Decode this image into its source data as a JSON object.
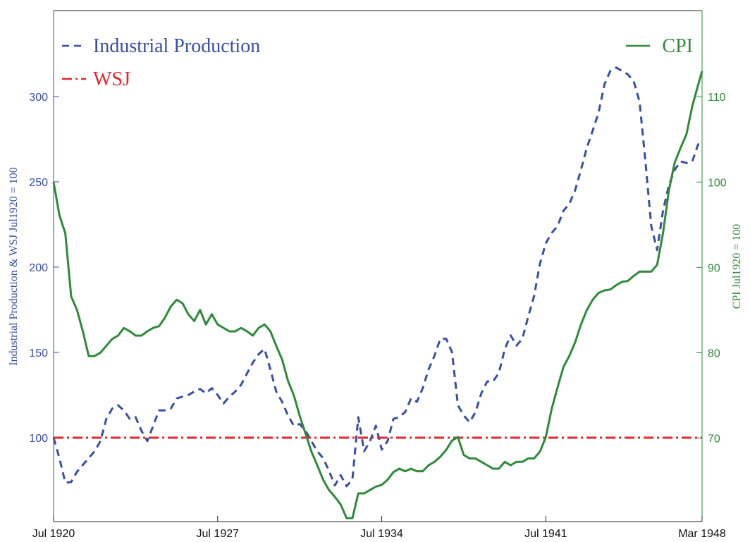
{
  "chart_data": {
    "type": "line",
    "ylabel": "Industrial Production & WSJ Jul1920 = 100",
    "y2label": "CPI Jul1920 = 100",
    "xlim": [
      "Jul 1920",
      "Mar 1948"
    ],
    "xticks": [
      "Jul 1920",
      "Jul 1927",
      "Jul 1934",
      "Jul 1941",
      "Mar 1948"
    ],
    "ylim": [
      50.8,
      350.4
    ],
    "yticks": [
      100,
      150,
      200,
      250,
      300
    ],
    "y2lim": [
      60.2,
      120.1
    ],
    "y2ticks": [
      70,
      80,
      90,
      100,
      110
    ],
    "x": [
      "Jul 1920",
      "Oct 1920",
      "Jan 1921",
      "Apr 1921",
      "Jul 1921",
      "Oct 1921",
      "Jan 1922",
      "Apr 1922",
      "Jul 1922",
      "Oct 1922",
      "Jan 1923",
      "Apr 1923",
      "Jul 1923",
      "Oct 1923",
      "Jan 1924",
      "Apr 1924",
      "Jul 1924",
      "Oct 1924",
      "Jan 1925",
      "Apr 1925",
      "Jul 1925",
      "Oct 1925",
      "Jan 1926",
      "Apr 1926",
      "Jul 1926",
      "Oct 1926",
      "Jan 1927",
      "Apr 1927",
      "Jul 1927",
      "Oct 1927",
      "Jan 1928",
      "Apr 1928",
      "Jul 1928",
      "Oct 1928",
      "Jan 1929",
      "Apr 1929",
      "Jul 1929",
      "Oct 1929",
      "Jan 1930",
      "Apr 1930",
      "Jul 1930",
      "Oct 1930",
      "Jan 1931",
      "Apr 1931",
      "Jul 1931",
      "Oct 1931",
      "Jan 1932",
      "Apr 1932",
      "Jul 1932",
      "Oct 1932",
      "Jan 1933",
      "Apr 1933",
      "Jul 1933",
      "Oct 1933",
      "Jan 1934",
      "Apr 1934",
      "Jul 1934",
      "Oct 1934",
      "Jan 1935",
      "Apr 1935",
      "Jul 1935",
      "Oct 1935",
      "Jan 1936",
      "Apr 1936",
      "Jul 1936",
      "Oct 1936",
      "Jan 1937",
      "Apr 1937",
      "Jul 1937",
      "Oct 1937",
      "Jan 1938",
      "Apr 1938",
      "Jul 1938",
      "Oct 1938",
      "Jan 1939",
      "Apr 1939",
      "Jul 1939",
      "Oct 1939",
      "Jan 1940",
      "Apr 1940",
      "Jul 1940",
      "Oct 1940",
      "Jan 1941",
      "Apr 1941",
      "Jul 1941",
      "Oct 1941",
      "Jan 1942",
      "Apr 1942",
      "Jul 1942",
      "Oct 1942",
      "Jan 1943",
      "Apr 1943",
      "Jul 1943",
      "Oct 1943",
      "Jan 1944",
      "Apr 1944",
      "Jul 1944",
      "Oct 1944",
      "Jan 1945",
      "Apr 1945",
      "Jul 1945",
      "Oct 1945",
      "Jan 1946",
      "Apr 1946",
      "Jul 1946",
      "Oct 1946",
      "Jan 1947",
      "Apr 1947",
      "Jul 1947",
      "Oct 1947",
      "Jan 1948",
      "Mar 1948"
    ],
    "series": [
      {
        "name": "Industrial Production",
        "color": "#3a4fa3",
        "linestyle": "--",
        "axis": "y",
        "values": [
          100,
          88,
          73.6,
          74,
          80,
          84,
          88,
          92,
          98,
          111,
          117,
          119,
          116,
          111,
          112,
          104,
          98,
          107,
          116,
          116,
          117,
          123,
          124,
          125,
          127,
          128.5,
          126,
          129,
          125,
          120,
          124,
          127,
          131,
          137.6,
          144,
          149,
          152,
          140,
          127,
          121,
          113,
          107,
          108,
          104,
          98,
          92,
          88,
          80.6,
          72,
          78,
          71.5,
          75.6,
          112,
          92,
          98,
          107,
          93,
          98,
          111,
          112,
          115,
          123,
          121,
          129,
          140,
          148,
          158,
          158,
          150,
          119,
          113,
          109,
          115,
          126,
          133,
          133,
          138,
          152,
          160,
          154,
          158,
          171,
          183,
          202,
          214,
          220,
          224,
          233,
          237,
          245,
          257,
          270,
          280,
          290.5,
          307,
          315,
          317,
          315,
          313,
          309,
          297,
          262,
          224,
          210,
          233,
          248,
          257,
          262,
          261,
          262,
          272,
          272
        ]
      },
      {
        "name": "WSJ",
        "color": "#e5262b",
        "linestyle": "-.",
        "axis": "y",
        "x": [
          "Jul 1920",
          "Mar 1948"
        ],
        "values": [
          100,
          100
        ]
      },
      {
        "name": "CPI",
        "color": "#2e8a3a",
        "linestyle": "-",
        "axis": "y2",
        "values": [
          100,
          96.1,
          94,
          86.6,
          85,
          82.5,
          79.6,
          79.6,
          80,
          80.8,
          81.6,
          82,
          82.9,
          82.5,
          82,
          82,
          82.5,
          82.9,
          83.1,
          84.1,
          85.4,
          86.2,
          85.8,
          84.5,
          83.7,
          85,
          83.3,
          84.5,
          83.3,
          82.9,
          82.5,
          82.5,
          82.9,
          82.5,
          82,
          82.9,
          83.3,
          82.5,
          80.8,
          79.2,
          76.7,
          75,
          72.6,
          70.5,
          68.4,
          66.8,
          65.1,
          63.9,
          63.1,
          62.2,
          60.6,
          60.6,
          63.5,
          63.5,
          63.9,
          64.3,
          64.5,
          65.1,
          66,
          66.4,
          66.1,
          66.4,
          66.1,
          66.1,
          66.8,
          67.2,
          67.8,
          68.6,
          69.7,
          70.1,
          68,
          67.6,
          67.6,
          67.2,
          66.8,
          66.4,
          66.4,
          67.2,
          66.8,
          67.2,
          67.2,
          67.6,
          67.6,
          68.4,
          70.1,
          73.4,
          75.9,
          78.3,
          79.6,
          81.2,
          83.3,
          85,
          86.2,
          87,
          87.3,
          87.4,
          87.9,
          88.3,
          88.4,
          89,
          89.5,
          89.5,
          89.5,
          90.3,
          94,
          99,
          102.3,
          104,
          105.6,
          108.9,
          111.4,
          113
        ]
      }
    ]
  }
}
